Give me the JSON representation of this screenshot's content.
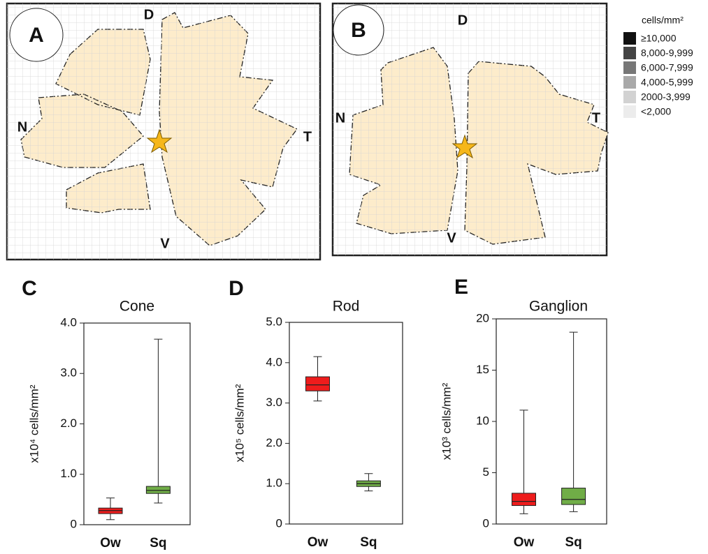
{
  "maps": [
    {
      "label": "A",
      "dorsal": "D",
      "nasal": "N",
      "temporal": "T",
      "ventral": "V"
    },
    {
      "label": "B",
      "dorsal": "D",
      "nasal": "N",
      "temporal": "T",
      "ventral": "V"
    }
  ],
  "legend": {
    "title": "cells/mm²",
    "items": [
      {
        "label": "≥10,000",
        "color": "#111111"
      },
      {
        "label": "8,000-9,999",
        "color": "#444444"
      },
      {
        "label": "6,000-7,999",
        "color": "#777777"
      },
      {
        "label": "4,000-5,999",
        "color": "#a9a9a9"
      },
      {
        "label": "2000-3,999",
        "color": "#d2d2d2"
      },
      {
        "label": "<2,000",
        "color": "#ececec"
      }
    ]
  },
  "chart_data": [
    {
      "type": "box",
      "label": "C",
      "title": "Cone",
      "ylabel": "x10⁴ cells/mm²",
      "categories": [
        "Ow",
        "Sq"
      ],
      "colors": [
        "#ee1c1c",
        "#70ad47"
      ],
      "min": [
        0.1,
        0.43
      ],
      "q1": [
        0.22,
        0.62
      ],
      "median": [
        0.28,
        0.68
      ],
      "q3": [
        0.33,
        0.76
      ],
      "max": [
        0.53,
        3.68
      ],
      "ylim": [
        0,
        4
      ],
      "yticks": [
        0,
        {
          "value": 1,
          "label": "1.0"
        },
        {
          "value": 2,
          "label": "2.0"
        },
        {
          "value": 3,
          "label": "3.0"
        },
        {
          "value": 4,
          "label": "4.0"
        }
      ]
    },
    {
      "type": "box",
      "label": "D",
      "title": "Rod",
      "ylabel": "x10⁵ cells/mm²",
      "categories": [
        "Ow",
        "Sq"
      ],
      "colors": [
        "#ee1c1c",
        "#70ad47"
      ],
      "min": [
        3.05,
        0.82
      ],
      "q1": [
        3.3,
        0.93
      ],
      "median": [
        3.45,
        1.0
      ],
      "q3": [
        3.65,
        1.07
      ],
      "max": [
        4.15,
        1.25
      ],
      "ylim": [
        0,
        5
      ],
      "yticks": [
        0,
        {
          "value": 1,
          "label": "1.0"
        },
        {
          "value": 2,
          "label": "2.0"
        },
        {
          "value": 3,
          "label": "3.0"
        },
        {
          "value": 4,
          "label": "4.0"
        },
        {
          "value": 5,
          "label": "5.0"
        }
      ]
    },
    {
      "type": "box",
      "label": "E",
      "title": "Ganglion",
      "ylabel": "x10³ cells/mm²",
      "categories": [
        "Ow",
        "Sq"
      ],
      "colors": [
        "#ee1c1c",
        "#70ad47"
      ],
      "min": [
        1.0,
        1.2
      ],
      "q1": [
        1.8,
        1.9
      ],
      "median": [
        2.2,
        2.4
      ],
      "q3": [
        3.0,
        3.5
      ],
      "max": [
        11.1,
        18.7
      ],
      "ylim": [
        0,
        20
      ],
      "yticks": [
        0,
        5,
        10,
        15,
        20
      ]
    }
  ]
}
